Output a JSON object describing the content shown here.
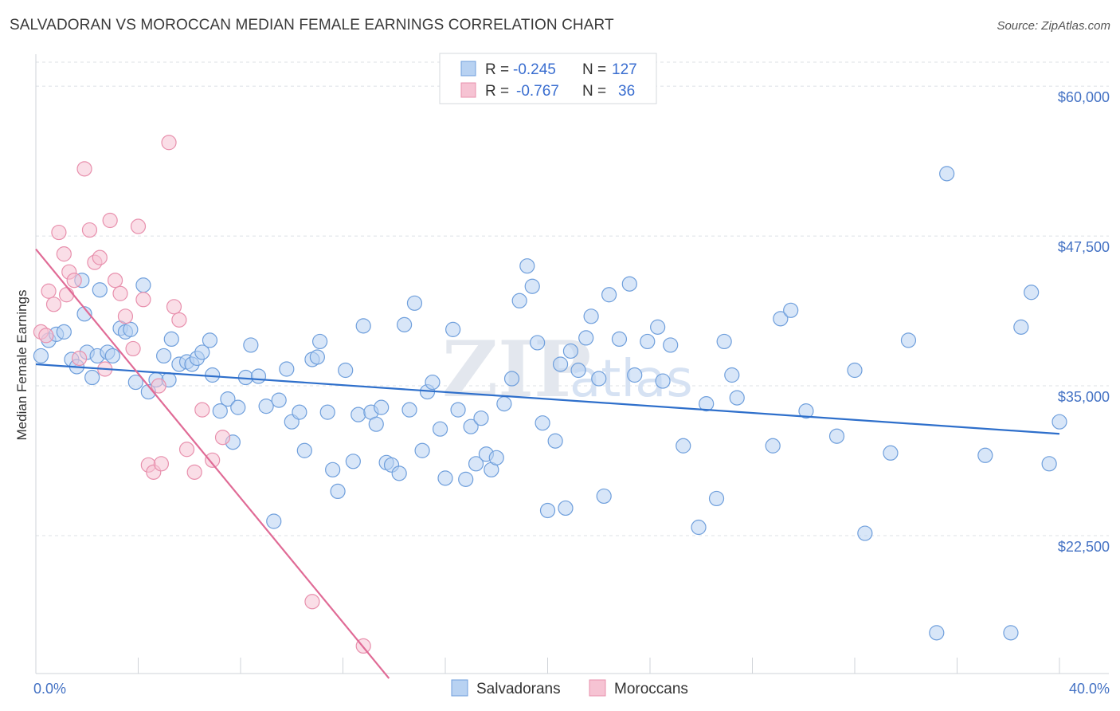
{
  "title": "SALVADORAN VS MOROCCAN MEDIAN FEMALE EARNINGS CORRELATION CHART",
  "source": "Source: ZipAtlas.com",
  "watermark": {
    "part1": "ZIP",
    "part2": "atlas"
  },
  "colors": {
    "salvadoran_fill": "#b8d2f2",
    "salvadoran_stroke": "#6f9fdc",
    "salvadoran_line": "#2e6fcb",
    "moroccan_fill": "#f6c3d3",
    "moroccan_stroke": "#e890ad",
    "moroccan_line": "#e06b96",
    "tick_label": "#4472c4",
    "grid": "#dde1e6"
  },
  "legend": {
    "rows": [
      {
        "r_label": "R = ",
        "r_value": "-0.245",
        "n_label": "N = ",
        "n_value": "127"
      },
      {
        "r_label": "R = ",
        "r_value": "-0.767",
        "n_label": "N = ",
        "n_value": "36"
      }
    ]
  },
  "chart_data": {
    "type": "scatter",
    "title": "SALVADORAN VS MOROCCAN MEDIAN FEMALE EARNINGS CORRELATION CHART",
    "xlabel": "",
    "ylabel": "Median Female Earnings",
    "xlim": [
      0,
      40
    ],
    "ylim": [
      11000,
      62000
    ],
    "x_tick_labels": [
      "0.0%",
      "40.0%"
    ],
    "y_ticks": [
      22500,
      35000,
      47500,
      60000
    ],
    "y_tick_labels": [
      "$22,500",
      "$35,000",
      "$47,500",
      "$60,000"
    ],
    "grid": true,
    "legend_position": "top-center",
    "series": [
      {
        "name": "Salvadorans",
        "trend": {
          "x": [
            0,
            40
          ],
          "y": [
            36800,
            31000
          ]
        },
        "points": [
          [
            0.2,
            37500
          ],
          [
            0.5,
            38800
          ],
          [
            0.8,
            39300
          ],
          [
            1.1,
            39500
          ],
          [
            1.4,
            37200
          ],
          [
            1.6,
            36600
          ],
          [
            1.8,
            43800
          ],
          [
            1.9,
            41000
          ],
          [
            2.0,
            37800
          ],
          [
            2.2,
            35700
          ],
          [
            2.4,
            37500
          ],
          [
            2.5,
            43000
          ],
          [
            2.8,
            37800
          ],
          [
            3.0,
            37500
          ],
          [
            3.3,
            39800
          ],
          [
            3.5,
            39500
          ],
          [
            3.7,
            39700
          ],
          [
            3.9,
            35300
          ],
          [
            4.2,
            43400
          ],
          [
            4.4,
            34500
          ],
          [
            4.7,
            35500
          ],
          [
            5.0,
            37500
          ],
          [
            5.2,
            35500
          ],
          [
            5.3,
            38900
          ],
          [
            5.6,
            36800
          ],
          [
            5.9,
            37000
          ],
          [
            6.1,
            36800
          ],
          [
            6.3,
            37300
          ],
          [
            6.5,
            37800
          ],
          [
            6.8,
            38800
          ],
          [
            6.9,
            35900
          ],
          [
            7.2,
            32900
          ],
          [
            7.5,
            33900
          ],
          [
            7.7,
            30300
          ],
          [
            7.9,
            33200
          ],
          [
            8.2,
            35700
          ],
          [
            8.4,
            38400
          ],
          [
            8.7,
            35800
          ],
          [
            9.0,
            33300
          ],
          [
            9.3,
            23700
          ],
          [
            9.5,
            33800
          ],
          [
            9.8,
            36400
          ],
          [
            10.0,
            32000
          ],
          [
            10.3,
            32800
          ],
          [
            10.5,
            29600
          ],
          [
            10.8,
            37200
          ],
          [
            11.0,
            37400
          ],
          [
            11.1,
            38700
          ],
          [
            11.4,
            32800
          ],
          [
            11.6,
            28000
          ],
          [
            11.8,
            26200
          ],
          [
            12.1,
            36300
          ],
          [
            12.4,
            28700
          ],
          [
            12.6,
            32600
          ],
          [
            12.8,
            40000
          ],
          [
            13.1,
            32800
          ],
          [
            13.3,
            31800
          ],
          [
            13.5,
            33200
          ],
          [
            13.7,
            28600
          ],
          [
            13.9,
            28400
          ],
          [
            14.2,
            27700
          ],
          [
            14.4,
            40100
          ],
          [
            14.6,
            33000
          ],
          [
            14.8,
            41900
          ],
          [
            15.1,
            29600
          ],
          [
            15.3,
            34500
          ],
          [
            15.5,
            35300
          ],
          [
            15.8,
            31400
          ],
          [
            16.0,
            27300
          ],
          [
            16.3,
            39700
          ],
          [
            16.5,
            33000
          ],
          [
            16.8,
            27200
          ],
          [
            17.0,
            31600
          ],
          [
            17.2,
            28500
          ],
          [
            17.4,
            32300
          ],
          [
            17.6,
            29300
          ],
          [
            17.8,
            28000
          ],
          [
            18.0,
            29000
          ],
          [
            18.3,
            33500
          ],
          [
            18.6,
            35600
          ],
          [
            18.9,
            42100
          ],
          [
            19.2,
            45000
          ],
          [
            19.4,
            43300
          ],
          [
            19.6,
            38600
          ],
          [
            19.8,
            31900
          ],
          [
            20.0,
            24600
          ],
          [
            20.3,
            30400
          ],
          [
            20.5,
            36800
          ],
          [
            20.7,
            24800
          ],
          [
            20.9,
            37900
          ],
          [
            21.2,
            36300
          ],
          [
            21.5,
            39000
          ],
          [
            21.7,
            40800
          ],
          [
            22.0,
            35600
          ],
          [
            22.2,
            25800
          ],
          [
            22.4,
            42600
          ],
          [
            22.8,
            38900
          ],
          [
            23.2,
            43500
          ],
          [
            23.4,
            35900
          ],
          [
            23.9,
            38700
          ],
          [
            24.3,
            39900
          ],
          [
            24.5,
            35400
          ],
          [
            24.8,
            38400
          ],
          [
            25.3,
            30000
          ],
          [
            25.9,
            23200
          ],
          [
            26.2,
            33500
          ],
          [
            26.6,
            25600
          ],
          [
            26.9,
            38700
          ],
          [
            27.2,
            35900
          ],
          [
            27.4,
            34000
          ],
          [
            28.8,
            30000
          ],
          [
            29.1,
            40600
          ],
          [
            29.5,
            41300
          ],
          [
            30.1,
            32900
          ],
          [
            31.3,
            30800
          ],
          [
            32.0,
            36300
          ],
          [
            32.4,
            22700
          ],
          [
            33.4,
            29400
          ],
          [
            34.1,
            38800
          ],
          [
            35.2,
            14400
          ],
          [
            35.6,
            52700
          ],
          [
            37.1,
            29200
          ],
          [
            38.1,
            14400
          ],
          [
            38.5,
            39900
          ],
          [
            38.9,
            42800
          ],
          [
            39.6,
            28500
          ],
          [
            40.0,
            32000
          ]
        ]
      },
      {
        "name": "Moroccans",
        "trend": {
          "x": [
            0,
            13.8
          ],
          "y": [
            46400,
            10600
          ]
        },
        "points": [
          [
            0.2,
            39500
          ],
          [
            0.5,
            42900
          ],
          [
            0.7,
            41800
          ],
          [
            0.9,
            47800
          ],
          [
            1.1,
            46000
          ],
          [
            1.3,
            44500
          ],
          [
            1.5,
            43800
          ],
          [
            1.7,
            37300
          ],
          [
            1.9,
            53100
          ],
          [
            2.1,
            48000
          ],
          [
            2.3,
            45300
          ],
          [
            2.5,
            45700
          ],
          [
            2.7,
            36400
          ],
          [
            2.9,
            48800
          ],
          [
            3.1,
            43800
          ],
          [
            3.3,
            42700
          ],
          [
            3.5,
            40800
          ],
          [
            3.8,
            38100
          ],
          [
            4.0,
            48300
          ],
          [
            4.2,
            42200
          ],
          [
            4.4,
            28400
          ],
          [
            4.6,
            27800
          ],
          [
            4.8,
            35000
          ],
          [
            4.9,
            28500
          ],
          [
            5.2,
            55300
          ],
          [
            5.4,
            41600
          ],
          [
            5.6,
            40500
          ],
          [
            5.9,
            29700
          ],
          [
            6.2,
            27800
          ],
          [
            6.5,
            33000
          ],
          [
            6.9,
            28800
          ],
          [
            7.3,
            30700
          ],
          [
            10.8,
            17000
          ],
          [
            12.8,
            13300
          ],
          [
            0.4,
            39200
          ],
          [
            1.2,
            42600
          ]
        ]
      }
    ]
  }
}
